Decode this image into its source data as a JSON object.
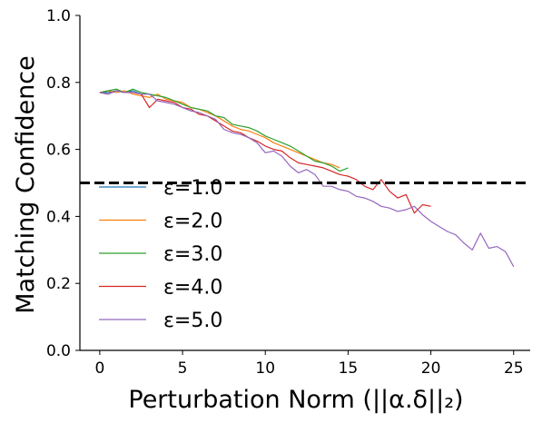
{
  "chart_data": {
    "type": "line",
    "xlabel": "Perturbation Norm (||α.δ||₂)",
    "ylabel": "Matching Confidence",
    "xlim": [
      -1.2,
      26
    ],
    "ylim": [
      0.0,
      1.0
    ],
    "xticks": [
      0,
      5,
      10,
      15,
      20,
      25
    ],
    "yticks": [
      0.0,
      0.2,
      0.4,
      0.6,
      0.8,
      1.0
    ],
    "xtick_labels": [
      "0",
      "5",
      "10",
      "15",
      "20",
      "25"
    ],
    "ytick_labels": [
      "0.0",
      "0.2",
      "0.4",
      "0.6",
      "0.8",
      "1.0"
    ],
    "grid": false,
    "legend_position": "lower-left",
    "reference_line": {
      "y": 0.5,
      "style": "dashed",
      "color": "#000000"
    },
    "series": [
      {
        "name": "ε=1.0",
        "color": "#1f77b4",
        "x": [
          0,
          0.5,
          1,
          1.5,
          2,
          2.5,
          3
        ],
        "y": [
          0.77,
          0.77,
          0.775,
          0.77,
          0.775,
          0.765,
          0.765
        ]
      },
      {
        "name": "ε=2.0",
        "color": "#ff7f0e",
        "x": [
          0,
          0.5,
          1,
          1.5,
          2,
          2.5,
          3,
          3.5,
          4,
          4.5,
          5,
          5.5,
          6,
          6.5,
          7,
          7.5,
          8,
          8.5,
          9,
          9.5,
          10,
          10.5,
          11,
          11.5,
          12,
          12.5,
          13,
          13.5,
          14,
          14.5
        ],
        "y": [
          0.77,
          0.775,
          0.77,
          0.775,
          0.765,
          0.76,
          0.755,
          0.765,
          0.75,
          0.745,
          0.74,
          0.725,
          0.72,
          0.71,
          0.7,
          0.685,
          0.67,
          0.66,
          0.655,
          0.645,
          0.635,
          0.62,
          0.61,
          0.6,
          0.59,
          0.58,
          0.57,
          0.56,
          0.555,
          0.545
        ]
      },
      {
        "name": "ε=3.0",
        "color": "#2ca02c",
        "x": [
          0,
          0.5,
          1,
          1.5,
          2,
          2.5,
          3,
          3.5,
          4,
          4.5,
          5,
          5.5,
          6,
          6.5,
          7,
          7.5,
          8,
          8.5,
          9,
          9.5,
          10,
          10.5,
          11,
          11.5,
          12,
          12.5,
          13,
          13.5,
          14,
          14.5,
          15
        ],
        "y": [
          0.77,
          0.775,
          0.78,
          0.77,
          0.78,
          0.77,
          0.765,
          0.76,
          0.755,
          0.745,
          0.735,
          0.725,
          0.72,
          0.715,
          0.7,
          0.695,
          0.675,
          0.67,
          0.665,
          0.655,
          0.64,
          0.63,
          0.62,
          0.61,
          0.595,
          0.58,
          0.565,
          0.56,
          0.55,
          0.535,
          0.545
        ]
      },
      {
        "name": "ε=4.0",
        "color": "#d62728",
        "x": [
          0,
          0.5,
          1,
          1.5,
          2,
          2.5,
          3,
          3.5,
          4,
          4.5,
          5,
          5.5,
          6,
          6.5,
          7,
          7.5,
          8,
          8.5,
          9,
          9.5,
          10,
          10.5,
          11,
          11.5,
          12,
          12.5,
          13,
          13.5,
          14,
          14.5,
          15,
          15.5,
          16,
          16.5,
          17,
          17.5,
          18,
          18.5,
          19,
          19.5,
          20
        ],
        "y": [
          0.77,
          0.765,
          0.775,
          0.77,
          0.77,
          0.765,
          0.725,
          0.75,
          0.745,
          0.74,
          0.725,
          0.72,
          0.705,
          0.7,
          0.685,
          0.67,
          0.655,
          0.65,
          0.635,
          0.625,
          0.61,
          0.6,
          0.595,
          0.575,
          0.56,
          0.555,
          0.55,
          0.545,
          0.535,
          0.525,
          0.52,
          0.51,
          0.49,
          0.48,
          0.51,
          0.475,
          0.455,
          0.465,
          0.41,
          0.435,
          0.43
        ]
      },
      {
        "name": "ε=5.0",
        "color": "#9467bd",
        "x": [
          0,
          0.5,
          1,
          1.5,
          2,
          2.5,
          3,
          3.5,
          4,
          4.5,
          5,
          5.5,
          6,
          6.5,
          7,
          7.5,
          8,
          8.5,
          9,
          9.5,
          10,
          10.5,
          11,
          11.5,
          12,
          12.5,
          13,
          13.5,
          14,
          14.5,
          15,
          15.5,
          16,
          16.5,
          17,
          17.5,
          18,
          18.5,
          19,
          19.5,
          20,
          20.5,
          21,
          21.5,
          22,
          22.5,
          23,
          23.5,
          24,
          24.5,
          25
        ],
        "y": [
          0.77,
          0.765,
          0.775,
          0.77,
          0.77,
          0.765,
          0.765,
          0.745,
          0.74,
          0.735,
          0.725,
          0.715,
          0.71,
          0.7,
          0.69,
          0.66,
          0.65,
          0.645,
          0.635,
          0.62,
          0.59,
          0.595,
          0.58,
          0.55,
          0.53,
          0.54,
          0.525,
          0.49,
          0.49,
          0.48,
          0.475,
          0.46,
          0.455,
          0.445,
          0.43,
          0.425,
          0.415,
          0.42,
          0.43,
          0.405,
          0.385,
          0.37,
          0.355,
          0.345,
          0.32,
          0.3,
          0.35,
          0.305,
          0.31,
          0.295,
          0.25
        ]
      }
    ]
  }
}
